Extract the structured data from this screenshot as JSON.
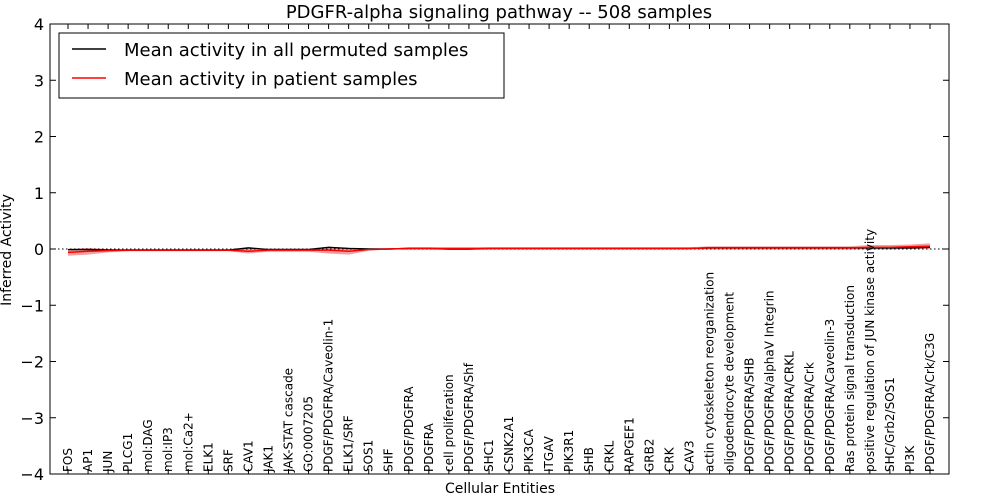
{
  "chart_data": {
    "type": "line",
    "title": "PDGFR-alpha signaling pathway -- 508 samples",
    "xlabel": "Cellular Entities",
    "ylabel": "Inferred Activity",
    "ylim": [
      -4,
      4
    ],
    "yticks": [
      -4,
      -3,
      -2,
      -1,
      0,
      1,
      2,
      3,
      4
    ],
    "ytick_labels": [
      "−4",
      "−3",
      "−2",
      "−1",
      "0",
      "1",
      "2",
      "3",
      "4"
    ],
    "grid": false,
    "legend_position": "top-left",
    "categories": [
      "FOS",
      "AP1",
      "JUN",
      "PLCG1",
      "mol:DAG",
      "mol:IP3",
      "mol:Ca2+",
      "ELK1",
      "SRF",
      "CAV1",
      "JAK1",
      "JAK-STAT cascade",
      "GO:0007205",
      "PDGF/PDGFRA/Caveolin-1",
      "ELK1/SRF",
      "SOS1",
      "SHF",
      "PDGF/PDGFRA",
      "PDGFRA",
      "cell proliferation",
      "PDGF/PDGFRA/Shf",
      "SHC1",
      "CSNK2A1",
      "PIK3CA",
      "ITGAV",
      "PIK3R1",
      "SHB",
      "CRKL",
      "RAPGEF1",
      "GRB2",
      "CRK",
      "CAV3",
      "actin cytoskeleton reorganization",
      "oligodendrocyte development",
      "PDGF/PDGFRA/SHB",
      "PDGF/PDGFRA/alphaV Integrin",
      "PDGF/PDGFRA/CRKL",
      "PDGF/PDGFRA/Crk",
      "PDGF/PDGFRA/Caveolin-3",
      "Ras protein signal transduction",
      "positive regulation of JUN kinase activity",
      "SHC/Grb2/SOS1",
      "PI3K",
      "PDGF/PDGFRA/Crk/C3G"
    ],
    "series": [
      {
        "name": "Mean activity in all permuted samples",
        "color": "#000000",
        "values": [
          -0.01,
          -0.01,
          -0.02,
          -0.02,
          -0.02,
          -0.02,
          -0.02,
          -0.02,
          -0.02,
          0.02,
          -0.01,
          -0.01,
          -0.01,
          0.03,
          0.01,
          0.0,
          0.0,
          0.01,
          0.01,
          0.0,
          0.0,
          0.01,
          0.01,
          0.01,
          0.01,
          0.01,
          0.01,
          0.01,
          0.01,
          0.01,
          0.01,
          0.01,
          0.02,
          0.02,
          0.02,
          0.02,
          0.02,
          0.02,
          0.02,
          0.02,
          0.02,
          0.02,
          0.02,
          0.03
        ]
      },
      {
        "name": "Mean activity in patient samples",
        "color": "#ff0000",
        "band_color": "#f08080",
        "values": [
          -0.06,
          -0.04,
          -0.03,
          -0.02,
          -0.02,
          -0.02,
          -0.02,
          -0.02,
          -0.02,
          -0.04,
          -0.02,
          -0.02,
          -0.02,
          -0.02,
          -0.04,
          -0.01,
          0.0,
          0.01,
          0.01,
          0.01,
          0.01,
          0.01,
          0.01,
          0.01,
          0.01,
          0.01,
          0.01,
          0.01,
          0.01,
          0.01,
          0.01,
          0.01,
          0.02,
          0.02,
          0.02,
          0.02,
          0.02,
          0.02,
          0.02,
          0.02,
          0.03,
          0.03,
          0.04,
          0.05
        ],
        "band": [
          0.06,
          0.06,
          0.03,
          0.02,
          0.02,
          0.02,
          0.02,
          0.02,
          0.02,
          0.04,
          0.03,
          0.03,
          0.03,
          0.06,
          0.06,
          0.02,
          0.01,
          0.02,
          0.02,
          0.02,
          0.02,
          0.02,
          0.02,
          0.02,
          0.02,
          0.02,
          0.02,
          0.02,
          0.02,
          0.02,
          0.02,
          0.02,
          0.03,
          0.03,
          0.03,
          0.03,
          0.03,
          0.03,
          0.03,
          0.03,
          0.04,
          0.04,
          0.04,
          0.05
        ]
      }
    ],
    "baseline": {
      "value": 0,
      "style": "dotted",
      "color": "#000000"
    }
  }
}
